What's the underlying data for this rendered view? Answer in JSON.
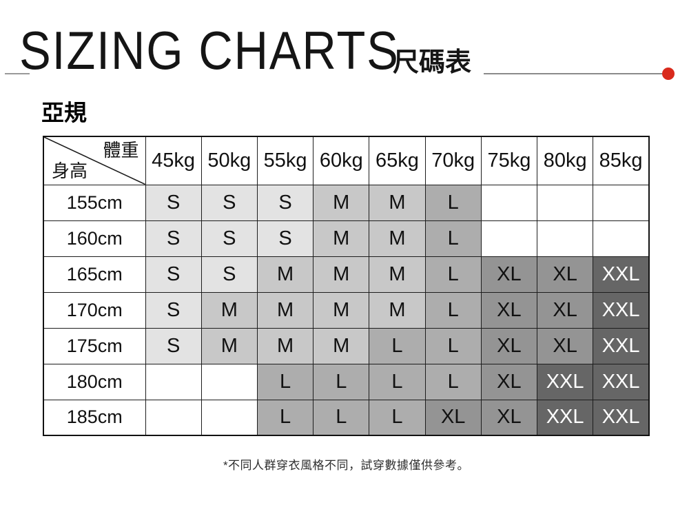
{
  "header": {
    "title_en": "SIZING CHARTS",
    "title_zh": "尺碼表"
  },
  "section": {
    "label": "亞規"
  },
  "table": {
    "corner": {
      "top_right": "體重",
      "bottom_left": "身高"
    }
  },
  "footnote": "*不同人群穿衣風格不同，試穿數據僅供參考。",
  "colors": {
    "accent_red": "#d92a1c",
    "rule_gray": "#8a8a8a",
    "border_black": "#1c1c1c",
    "size_fill": {
      "S": "#e3e3e3",
      "M": "#c8c8c8",
      "L": "#adadad",
      "XL": "#949494",
      "XXL": "#666666"
    },
    "size_text": {
      "default": "#111111",
      "XXL": "#ffffff"
    }
  },
  "chart_data": {
    "type": "table",
    "title": "SIZING CHARTS 尺碼表 — 亞規",
    "x_axis_label": "體重",
    "y_axis_label": "身高",
    "columns": [
      "45kg",
      "50kg",
      "55kg",
      "60kg",
      "65kg",
      "70kg",
      "75kg",
      "80kg",
      "85kg"
    ],
    "rows": [
      "155cm",
      "160cm",
      "165cm",
      "170cm",
      "175cm",
      "180cm",
      "185cm"
    ],
    "cells": [
      [
        "S",
        "S",
        "S",
        "M",
        "M",
        "L",
        "",
        "",
        ""
      ],
      [
        "S",
        "S",
        "S",
        "M",
        "M",
        "L",
        "",
        "",
        ""
      ],
      [
        "S",
        "S",
        "M",
        "M",
        "M",
        "L",
        "XL",
        "XL",
        "XXL"
      ],
      [
        "S",
        "M",
        "M",
        "M",
        "M",
        "L",
        "XL",
        "XL",
        "XXL"
      ],
      [
        "S",
        "M",
        "M",
        "M",
        "L",
        "L",
        "XL",
        "XL",
        "XXL"
      ],
      [
        "",
        "",
        "L",
        "L",
        "L",
        "L",
        "XL",
        "XXL",
        "XXL"
      ],
      [
        "",
        "",
        "L",
        "L",
        "L",
        "XL",
        "XL",
        "XXL",
        "XXL"
      ]
    ]
  }
}
